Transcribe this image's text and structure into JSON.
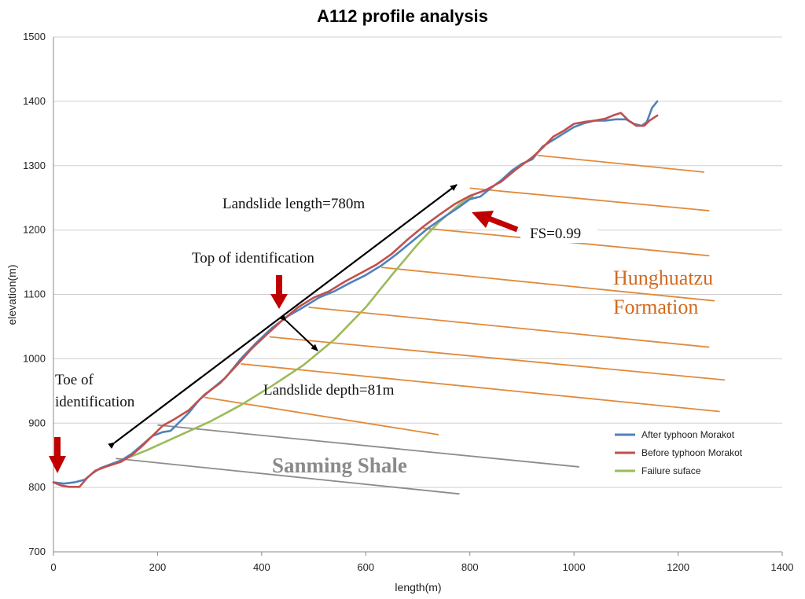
{
  "chart_data": {
    "type": "line",
    "title": "A112 profile analysis",
    "xlabel": "length(m)",
    "ylabel": "elevation(m)",
    "xlim": [
      0,
      1400
    ],
    "ylim": [
      700,
      1500
    ],
    "xticks": [
      0,
      200,
      400,
      600,
      800,
      1000,
      1200,
      1400
    ],
    "yticks": [
      700,
      800,
      900,
      1000,
      1100,
      1200,
      1300,
      1400,
      1500
    ],
    "grid": "horizontal",
    "legend_position": "right",
    "series": [
      {
        "name": "After typhoon  Morakot",
        "color": "#4f81bd",
        "points": [
          [
            0,
            808
          ],
          [
            20,
            806
          ],
          [
            40,
            808
          ],
          [
            60,
            812
          ],
          [
            75,
            822
          ],
          [
            90,
            830
          ],
          [
            110,
            836
          ],
          [
            130,
            842
          ],
          [
            150,
            852
          ],
          [
            170,
            866
          ],
          [
            190,
            880
          ],
          [
            210,
            886
          ],
          [
            225,
            888
          ],
          [
            240,
            900
          ],
          [
            260,
            916
          ],
          [
            280,
            936
          ],
          [
            300,
            950
          ],
          [
            330,
            970
          ],
          [
            360,
            1000
          ],
          [
            390,
            1025
          ],
          [
            420,
            1048
          ],
          [
            450,
            1066
          ],
          [
            480,
            1080
          ],
          [
            510,
            1095
          ],
          [
            540,
            1105
          ],
          [
            570,
            1118
          ],
          [
            600,
            1130
          ],
          [
            630,
            1145
          ],
          [
            660,
            1163
          ],
          [
            690,
            1183
          ],
          [
            720,
            1203
          ],
          [
            750,
            1220
          ],
          [
            780,
            1236
          ],
          [
            800,
            1248
          ],
          [
            820,
            1252
          ],
          [
            840,
            1265
          ],
          [
            860,
            1277
          ],
          [
            880,
            1292
          ],
          [
            900,
            1303
          ],
          [
            920,
            1310
          ],
          [
            940,
            1330
          ],
          [
            960,
            1340
          ],
          [
            980,
            1350
          ],
          [
            1000,
            1360
          ],
          [
            1020,
            1366
          ],
          [
            1040,
            1370
          ],
          [
            1060,
            1370
          ],
          [
            1080,
            1372
          ],
          [
            1100,
            1372
          ],
          [
            1115,
            1365
          ],
          [
            1130,
            1362
          ],
          [
            1140,
            1368
          ],
          [
            1150,
            1390
          ],
          [
            1160,
            1400
          ]
        ]
      },
      {
        "name": "Before typhoon  Morakot",
        "color": "#c0504d",
        "points": [
          [
            0,
            808
          ],
          [
            15,
            803
          ],
          [
            30,
            801
          ],
          [
            50,
            801
          ],
          [
            65,
            815
          ],
          [
            80,
            826
          ],
          [
            100,
            832
          ],
          [
            130,
            840
          ],
          [
            150,
            850
          ],
          [
            170,
            864
          ],
          [
            190,
            880
          ],
          [
            210,
            896
          ],
          [
            230,
            905
          ],
          [
            260,
            920
          ],
          [
            290,
            944
          ],
          [
            320,
            962
          ],
          [
            350,
            988
          ],
          [
            380,
            1015
          ],
          [
            410,
            1038
          ],
          [
            440,
            1060
          ],
          [
            470,
            1080
          ],
          [
            500,
            1095
          ],
          [
            530,
            1105
          ],
          [
            560,
            1120
          ],
          [
            590,
            1133
          ],
          [
            620,
            1146
          ],
          [
            650,
            1163
          ],
          [
            680,
            1185
          ],
          [
            710,
            1205
          ],
          [
            740,
            1223
          ],
          [
            770,
            1240
          ],
          [
            800,
            1253
          ],
          [
            830,
            1262
          ],
          [
            860,
            1275
          ],
          [
            890,
            1295
          ],
          [
            920,
            1313
          ],
          [
            940,
            1328
          ],
          [
            960,
            1345
          ],
          [
            980,
            1354
          ],
          [
            1000,
            1365
          ],
          [
            1020,
            1368
          ],
          [
            1040,
            1370
          ],
          [
            1060,
            1373
          ],
          [
            1075,
            1378
          ],
          [
            1090,
            1382
          ],
          [
            1105,
            1370
          ],
          [
            1120,
            1362
          ],
          [
            1135,
            1362
          ],
          [
            1145,
            1370
          ],
          [
            1160,
            1378
          ]
        ]
      },
      {
        "name": "Failure suface",
        "color": "#9bbb59",
        "points": [
          [
            130,
            842
          ],
          [
            180,
            858
          ],
          [
            240,
            880
          ],
          [
            300,
            902
          ],
          [
            360,
            928
          ],
          [
            420,
            958
          ],
          [
            480,
            990
          ],
          [
            540,
            1030
          ],
          [
            600,
            1080
          ],
          [
            650,
            1130
          ],
          [
            700,
            1178
          ],
          [
            740,
            1212
          ],
          [
            780,
            1240
          ],
          [
            805,
            1252
          ]
        ]
      }
    ],
    "strata": {
      "orange": [
        [
          [
            290,
            940
          ],
          [
            740,
            882
          ]
        ],
        [
          [
            360,
            992
          ],
          [
            1280,
            918
          ]
        ],
        [
          [
            415,
            1034
          ],
          [
            1290,
            967
          ]
        ],
        [
          [
            490,
            1080
          ],
          [
            1260,
            1018
          ]
        ],
        [
          [
            630,
            1142
          ],
          [
            1270,
            1090
          ]
        ],
        [
          [
            710,
            1203
          ],
          [
            1260,
            1160
          ]
        ],
        [
          [
            800,
            1265
          ],
          [
            1260,
            1230
          ]
        ],
        [
          [
            930,
            1316
          ],
          [
            1250,
            1290
          ]
        ]
      ],
      "gray": [
        [
          [
            200,
            897
          ],
          [
            1010,
            832
          ]
        ],
        [
          [
            120,
            845
          ],
          [
            780,
            790
          ]
        ]
      ]
    },
    "annotations": {
      "landslide_length": "Landslide length=780m",
      "top_of_identification": "Top of identification",
      "toe_of_identification_line1": "Toe of",
      "toe_of_identification_line2": "identification",
      "landslide_depth": "Landslide depth=81m",
      "fs": "FS=0.99",
      "formation_line1": "Hunghuatzu",
      "formation_line2": "Formation",
      "shale": "Sanming Shale"
    }
  },
  "colors": {
    "orange_stratum": "#e08a3c",
    "gray_stratum": "#8c8c8c",
    "red_arrow": "#c00000",
    "grid": "#d0d0d0"
  }
}
